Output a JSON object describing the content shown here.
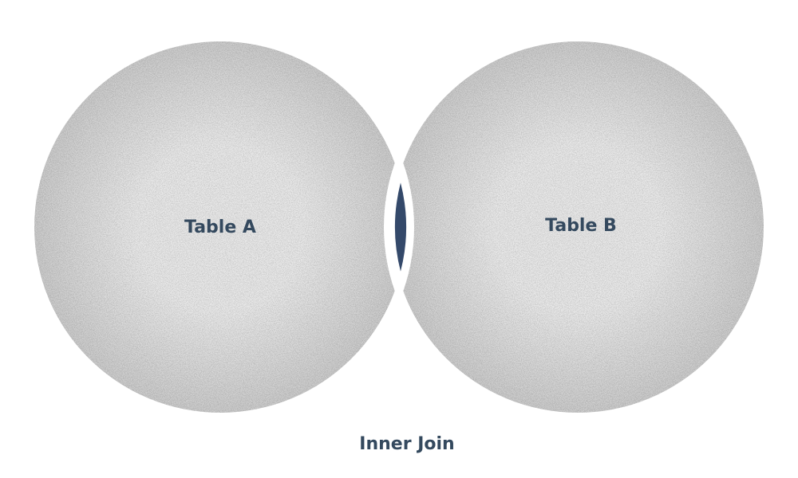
{
  "diagram": {
    "set_a_label": "Table A",
    "set_b_label": "Table B",
    "caption": "Inner Join",
    "colors": {
      "set_fill_center": "#e6e6e6",
      "set_fill_edge": "#c9c9c9",
      "intersection": "#34496a",
      "label": "#34495e"
    }
  }
}
